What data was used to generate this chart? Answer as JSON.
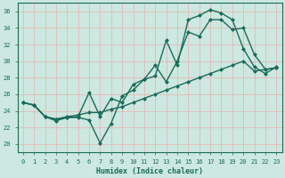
{
  "xlabel": "Humidex (Indice chaleur)",
  "bg_color": "#cce8e0",
  "line_color": "#1a6b5a",
  "grid_color": "#e8b0b0",
  "ylim": [
    19,
    37
  ],
  "xlim": [
    -0.5,
    23.5
  ],
  "yticks": [
    20,
    22,
    24,
    26,
    28,
    30,
    32,
    34,
    36
  ],
  "xticks": [
    0,
    1,
    2,
    3,
    4,
    5,
    6,
    7,
    8,
    9,
    10,
    11,
    12,
    13,
    14,
    15,
    16,
    17,
    18,
    19,
    20,
    21,
    22,
    23
  ],
  "line1_x": [
    0,
    1,
    2,
    3,
    4,
    5,
    6,
    7,
    8,
    9,
    10,
    11,
    12,
    13,
    14,
    15,
    16,
    17,
    18,
    19,
    20,
    21,
    22,
    23
  ],
  "line1_y": [
    25.0,
    24.7,
    23.3,
    22.8,
    23.2,
    23.2,
    22.9,
    20.1,
    22.5,
    25.8,
    26.5,
    27.8,
    28.2,
    32.5,
    29.5,
    35.0,
    35.5,
    36.2,
    35.8,
    35.0,
    31.5,
    29.3,
    28.5,
    29.3
  ],
  "line2_x": [
    0,
    1,
    2,
    3,
    4,
    5,
    6,
    7,
    8,
    9,
    10,
    11,
    12,
    13,
    14,
    15,
    16,
    17,
    18,
    19,
    20,
    21,
    22,
    23
  ],
  "line2_y": [
    25.0,
    24.7,
    23.3,
    23.0,
    23.2,
    23.3,
    26.2,
    23.3,
    25.5,
    25.0,
    27.2,
    27.8,
    29.5,
    27.5,
    30.0,
    33.5,
    33.0,
    35.0,
    35.0,
    33.8,
    34.0,
    30.8,
    29.0,
    29.2
  ],
  "line3_x": [
    0,
    1,
    2,
    3,
    4,
    5,
    6,
    7,
    8,
    9,
    10,
    11,
    12,
    13,
    14,
    15,
    16,
    17,
    18,
    19,
    20,
    21,
    22,
    23
  ],
  "line3_y": [
    25.0,
    24.7,
    23.3,
    23.0,
    23.3,
    23.5,
    23.8,
    23.8,
    24.2,
    24.5,
    25.0,
    25.5,
    26.0,
    26.5,
    27.0,
    27.5,
    28.0,
    28.5,
    29.0,
    29.5,
    30.0,
    28.8,
    29.0,
    29.2
  ]
}
